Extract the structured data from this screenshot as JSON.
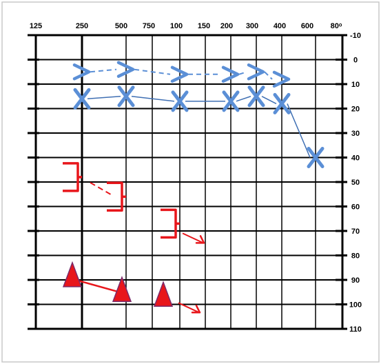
{
  "chart_data": {
    "type": "scatter",
    "title": "",
    "xlabel": "",
    "ylabel": "",
    "x_ticks": [
      "125",
      "250",
      "500",
      "750",
      "100",
      "150",
      "200",
      "300",
      "400",
      "600",
      "80ᵒ"
    ],
    "y_ticks": [
      "-10",
      "0",
      "10",
      "20",
      "30",
      "40",
      "50",
      "60",
      "70",
      "80",
      "90",
      "100",
      "110"
    ],
    "ylim": [
      -10,
      110
    ],
    "y_inverted": true,
    "grid": true,
    "colors": {
      "blue": "#5b8fd6",
      "red": "#e8161b",
      "triangle_outline": "#7a2a6a"
    },
    "series": [
      {
        "symbol": "right-chevron",
        "color": "#5b8fd6",
        "line": "dashed",
        "points": [
          {
            "x": "250",
            "y": 5
          },
          {
            "x": "500",
            "y": 4
          },
          {
            "x": "100",
            "y": 6
          },
          {
            "x": "200",
            "y": 6
          },
          {
            "x": "300",
            "y": 5
          },
          {
            "x": "400",
            "y": 8
          }
        ]
      },
      {
        "symbol": "X",
        "color": "#5b8fd6",
        "line": "solid",
        "points": [
          {
            "x": "250",
            "y": 16
          },
          {
            "x": "500",
            "y": 15
          },
          {
            "x": "100",
            "y": 17
          },
          {
            "x": "200",
            "y": 17
          },
          {
            "x": "300",
            "y": 15
          },
          {
            "x": "400",
            "y": 18
          },
          {
            "x": "600",
            "y": 40
          }
        ]
      },
      {
        "symbol": "right-bracket",
        "color": "#e8161b",
        "line": "dashed",
        "points": [
          {
            "x": "250",
            "y": 48
          },
          {
            "x": "500",
            "y": 56
          },
          {
            "x": "100",
            "y": 67
          }
        ],
        "no_response_arrows": [
          "100"
        ]
      },
      {
        "symbol": "triangle",
        "color": "#e8161b",
        "line": "solid",
        "points": [
          {
            "x": "250",
            "y": 88
          },
          {
            "x": "500",
            "y": 94
          },
          {
            "x": "100",
            "y": 96
          }
        ],
        "no_response_arrows": [
          "100"
        ]
      }
    ]
  }
}
